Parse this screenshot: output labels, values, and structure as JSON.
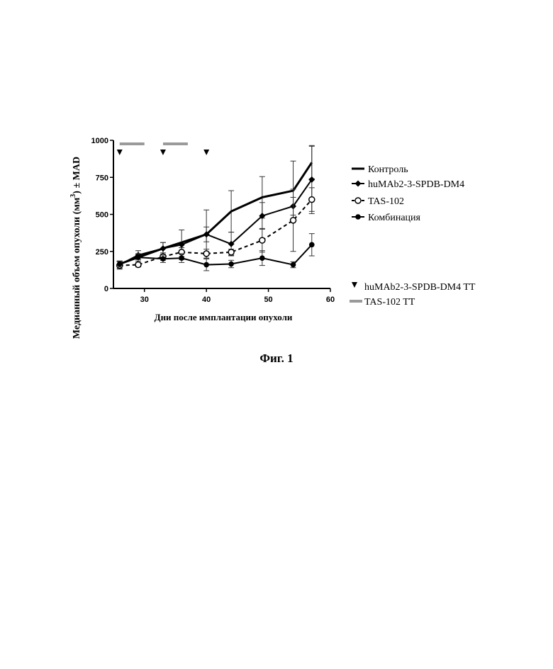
{
  "chart_data": {
    "type": "line",
    "ylabel_main": "Медианный объем опухоли (мм",
    "ylabel_sup": "3",
    "ylabel_tail": ") ± MAD",
    "xlabel": "Дни после имплантации опухоли",
    "xlim": [
      25,
      60
    ],
    "ylim": [
      0,
      1000
    ],
    "xticks": [
      "30",
      "40",
      "50",
      "60"
    ],
    "xtick_values": [
      30,
      40,
      50,
      60
    ],
    "yticks": [
      "0",
      "250",
      "500",
      "750",
      "1000"
    ],
    "ytick_values": [
      0,
      250,
      500,
      750,
      1000
    ],
    "grid": false,
    "legend_position": "right",
    "series": [
      {
        "name": "Контроль",
        "style": "thick-solid",
        "marker": "none",
        "x": [
          26,
          33,
          40,
          44,
          49,
          54,
          57
        ],
        "y": [
          165,
          270,
          365,
          520,
          615,
          660,
          850
        ],
        "err": [
          20,
          40,
          165,
          140,
          140,
          200,
          110
        ]
      },
      {
        "name": "huMAb2-3-SPDB-DM4",
        "style": "solid",
        "marker": "diamond",
        "x": [
          26,
          29,
          33,
          36,
          40,
          44,
          49,
          54,
          57
        ],
        "y": [
          160,
          225,
          270,
          295,
          365,
          300,
          490,
          555,
          735
        ],
        "err": [
          25,
          30,
          40,
          100,
          50,
          80,
          90,
          60,
          230
        ]
      },
      {
        "name": "TAS-102",
        "style": "dashed",
        "marker": "open-circle",
        "x": [
          26,
          29,
          33,
          36,
          40,
          44,
          49,
          54,
          57
        ],
        "y": [
          155,
          160,
          215,
          245,
          235,
          245,
          325,
          460,
          600
        ],
        "err": [
          25,
          15,
          25,
          30,
          30,
          20,
          80,
          210,
          80
        ]
      },
      {
        "name": "Комбинация",
        "style": "solid",
        "marker": "filled-circle",
        "x": [
          26,
          29,
          33,
          36,
          40,
          44,
          49,
          54,
          57
        ],
        "y": [
          165,
          210,
          200,
          205,
          160,
          165,
          205,
          160,
          295
        ],
        "err": [
          20,
          25,
          25,
          30,
          40,
          25,
          50,
          20,
          75
        ]
      }
    ],
    "dosing": {
      "triangle_label": "huMAb2-3-SPDB-DM4 TT",
      "triangle_days": [
        26,
        33,
        40
      ],
      "bar_label": "TAS-102 TT",
      "bar_ranges": [
        [
          26,
          30
        ],
        [
          33,
          37
        ]
      ],
      "bar_color": "#9a9a9a"
    }
  },
  "caption": "Фиг. 1"
}
